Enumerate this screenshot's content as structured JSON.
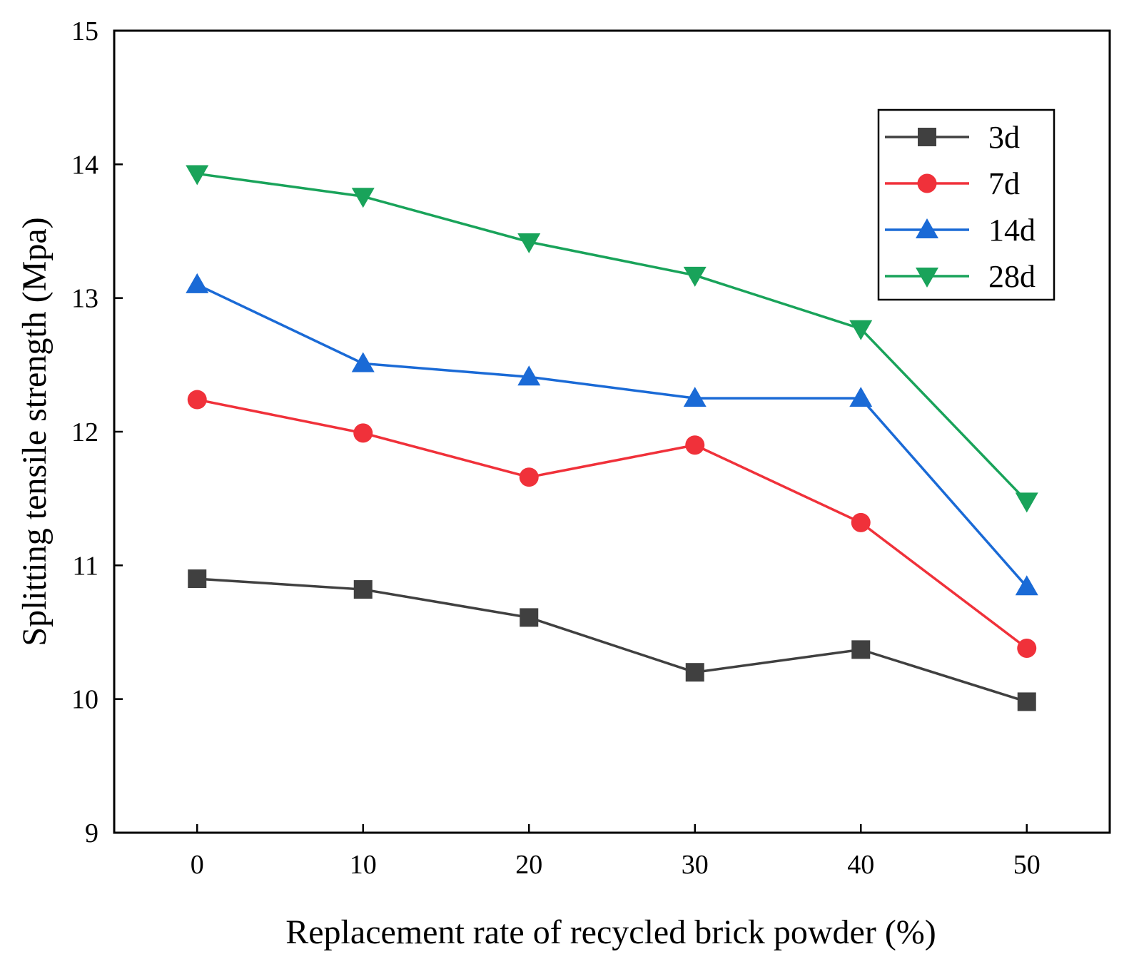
{
  "chart_data": {
    "type": "line",
    "title": "",
    "xlabel": "Replacement rate of recycled brick powder (%)",
    "ylabel": "Splitting tensile strength (Mpa)",
    "x": [
      0,
      10,
      20,
      30,
      40,
      50
    ],
    "xlim": [
      -5,
      55
    ],
    "ylim": [
      9,
      15
    ],
    "xticks": [
      "0",
      "10",
      "20",
      "30",
      "40",
      "50"
    ],
    "yticks": [
      "9",
      "10",
      "11",
      "12",
      "13",
      "14",
      "15"
    ],
    "grid": false,
    "legend_position": "top-right",
    "series": [
      {
        "name": "3d",
        "color": "#404040",
        "marker": "square",
        "values": [
          10.9,
          10.82,
          10.61,
          10.2,
          10.37,
          9.98
        ]
      },
      {
        "name": "7d",
        "color": "#f0313a",
        "marker": "circle",
        "values": [
          12.24,
          11.99,
          11.66,
          11.9,
          11.32,
          10.38
        ]
      },
      {
        "name": "14d",
        "color": "#1a6ad6",
        "marker": "triangle-up",
        "values": [
          13.1,
          12.51,
          12.41,
          12.25,
          12.25,
          10.84
        ]
      },
      {
        "name": "28d",
        "color": "#19a35a",
        "marker": "triangle-down",
        "values": [
          13.93,
          13.76,
          13.42,
          13.17,
          12.77,
          11.48
        ]
      }
    ]
  }
}
